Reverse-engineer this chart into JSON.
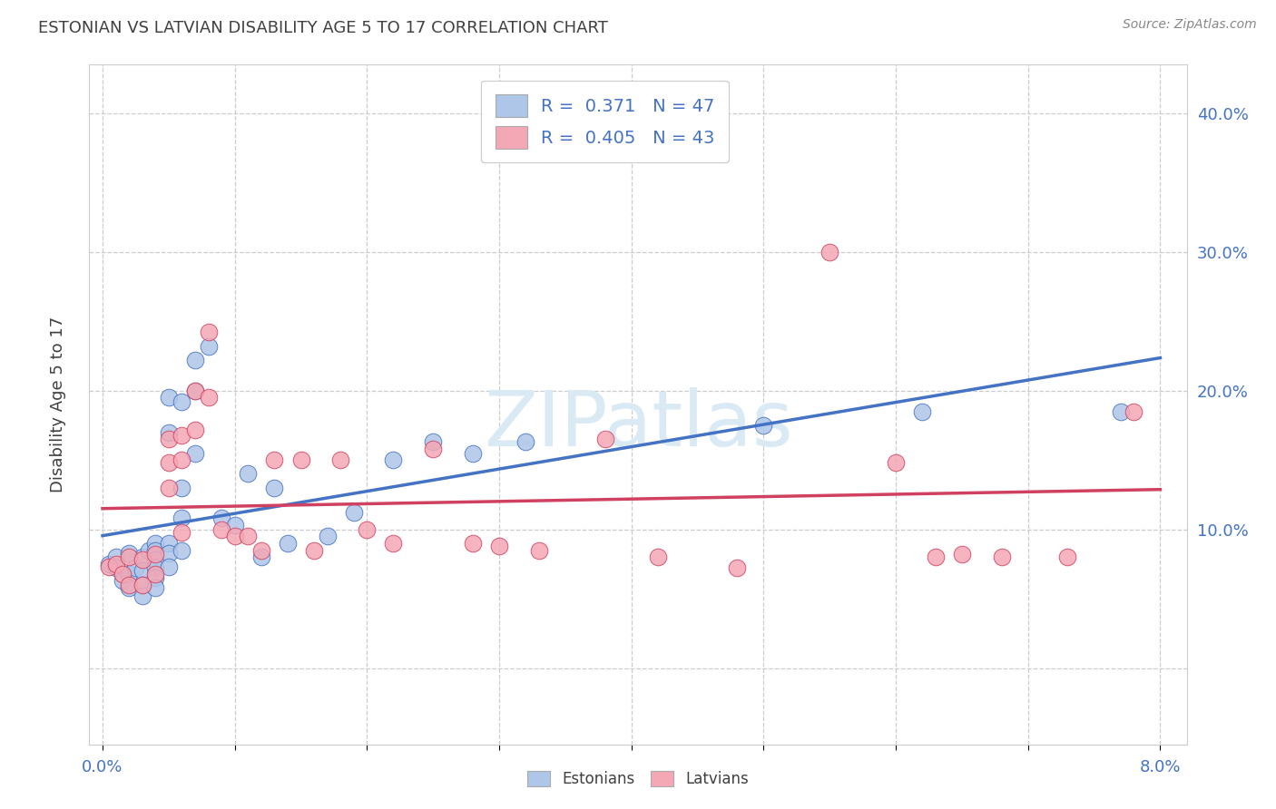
{
  "title": "ESTONIAN VS LATVIAN DISABILITY AGE 5 TO 17 CORRELATION CHART",
  "source_text": "Source: ZipAtlas.com",
  "ylabel": "Disability Age 5 to 17",
  "xlim": [
    -0.001,
    0.082
  ],
  "ylim": [
    -0.055,
    0.435
  ],
  "xtick_positions": [
    0.0,
    0.01,
    0.02,
    0.03,
    0.04,
    0.05,
    0.06,
    0.07,
    0.08
  ],
  "xtick_labels": [
    "0.0%",
    "",
    "",
    "",
    "",
    "",
    "",
    "",
    "8.0%"
  ],
  "ytick_positions": [
    0.0,
    0.1,
    0.2,
    0.3,
    0.4
  ],
  "ytick_labels_left": [
    "",
    "",
    "",
    "",
    ""
  ],
  "ytick_labels_right": [
    "",
    "10.0%",
    "20.0%",
    "30.0%",
    "40.0%"
  ],
  "legend_R1": "0.371",
  "legend_N1": "47",
  "legend_R2": "0.405",
  "legend_N2": "43",
  "color_estonian": "#aec6e8",
  "color_latvian": "#f4a7b4",
  "line_color_estonian": "#4472c4",
  "line_color_latvian": "#d04060",
  "watermark_text": "ZIPatlas",
  "watermark_color": "#daeaf5",
  "background_color": "#ffffff",
  "title_color": "#404040",
  "axis_label_color": "#404040",
  "tick_label_color": "#4472c4",
  "grid_color": "#cccccc",
  "estonian_x": [
    0.0005,
    0.001,
    0.001,
    0.0015,
    0.002,
    0.002,
    0.002,
    0.0025,
    0.003,
    0.003,
    0.003,
    0.003,
    0.0035,
    0.004,
    0.004,
    0.004,
    0.004,
    0.004,
    0.004,
    0.005,
    0.005,
    0.005,
    0.005,
    0.005,
    0.006,
    0.006,
    0.006,
    0.006,
    0.007,
    0.007,
    0.007,
    0.008,
    0.009,
    0.01,
    0.011,
    0.012,
    0.013,
    0.014,
    0.017,
    0.019,
    0.022,
    0.025,
    0.028,
    0.032,
    0.05,
    0.062,
    0.077
  ],
  "estonian_y": [
    0.075,
    0.08,
    0.072,
    0.063,
    0.083,
    0.068,
    0.058,
    0.072,
    0.08,
    0.07,
    0.06,
    0.052,
    0.085,
    0.09,
    0.085,
    0.078,
    0.072,
    0.065,
    0.058,
    0.195,
    0.17,
    0.09,
    0.083,
    0.073,
    0.192,
    0.13,
    0.108,
    0.085,
    0.222,
    0.2,
    0.155,
    0.232,
    0.108,
    0.103,
    0.14,
    0.08,
    0.13,
    0.09,
    0.095,
    0.112,
    0.15,
    0.163,
    0.155,
    0.163,
    0.175,
    0.185,
    0.185
  ],
  "latvian_x": [
    0.0005,
    0.001,
    0.0015,
    0.002,
    0.002,
    0.003,
    0.003,
    0.004,
    0.004,
    0.005,
    0.005,
    0.005,
    0.006,
    0.006,
    0.006,
    0.007,
    0.007,
    0.008,
    0.008,
    0.009,
    0.01,
    0.011,
    0.012,
    0.013,
    0.015,
    0.016,
    0.018,
    0.02,
    0.022,
    0.025,
    0.028,
    0.03,
    0.033,
    0.038,
    0.042,
    0.048,
    0.055,
    0.06,
    0.063,
    0.065,
    0.068,
    0.073,
    0.078
  ],
  "latvian_y": [
    0.073,
    0.075,
    0.068,
    0.08,
    0.06,
    0.078,
    0.06,
    0.082,
    0.068,
    0.165,
    0.148,
    0.13,
    0.168,
    0.15,
    0.098,
    0.2,
    0.172,
    0.242,
    0.195,
    0.1,
    0.095,
    0.095,
    0.085,
    0.15,
    0.15,
    0.085,
    0.15,
    0.1,
    0.09,
    0.158,
    0.09,
    0.088,
    0.085,
    0.165,
    0.08,
    0.072,
    0.3,
    0.148,
    0.08,
    0.082,
    0.08,
    0.08,
    0.185
  ]
}
